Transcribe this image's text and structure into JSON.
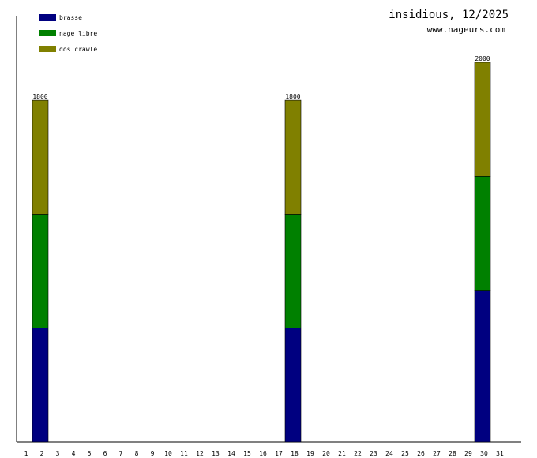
{
  "header": {
    "title": "insidious, 12/2025",
    "site": "www.nageurs.com"
  },
  "chart_data": {
    "type": "bar",
    "stacked": true,
    "categories": [
      "1",
      "2",
      "3",
      "4",
      "5",
      "6",
      "7",
      "8",
      "9",
      "10",
      "11",
      "12",
      "13",
      "14",
      "15",
      "16",
      "17",
      "18",
      "19",
      "20",
      "21",
      "22",
      "23",
      "24",
      "25",
      "26",
      "27",
      "28",
      "29",
      "30",
      "31"
    ],
    "series": [
      {
        "name": "brasse",
        "color": "#000080",
        "values": [
          0,
          600,
          0,
          0,
          0,
          0,
          0,
          0,
          0,
          0,
          0,
          0,
          0,
          0,
          0,
          0,
          0,
          600,
          0,
          0,
          0,
          0,
          0,
          0,
          0,
          0,
          0,
          0,
          0,
          800,
          0
        ]
      },
      {
        "name": "nage libre",
        "color": "#008000",
        "values": [
          0,
          600,
          0,
          0,
          0,
          0,
          0,
          0,
          0,
          0,
          0,
          0,
          0,
          0,
          0,
          0,
          0,
          600,
          0,
          0,
          0,
          0,
          0,
          0,
          0,
          0,
          0,
          0,
          0,
          600,
          0
        ]
      },
      {
        "name": "dos crawlé",
        "color": "#808000",
        "values": [
          0,
          600,
          0,
          0,
          0,
          0,
          0,
          0,
          0,
          0,
          0,
          0,
          0,
          0,
          0,
          0,
          0,
          600,
          0,
          0,
          0,
          0,
          0,
          0,
          0,
          0,
          0,
          0,
          0,
          600,
          0
        ]
      }
    ],
    "totals": [
      0,
      1800,
      0,
      0,
      0,
      0,
      0,
      0,
      0,
      0,
      0,
      0,
      0,
      0,
      0,
      0,
      0,
      1800,
      0,
      0,
      0,
      0,
      0,
      0,
      0,
      0,
      0,
      0,
      0,
      2000,
      0
    ],
    "ylim": [
      0,
      2000
    ],
    "legend_position": "top-left",
    "grid": false
  }
}
